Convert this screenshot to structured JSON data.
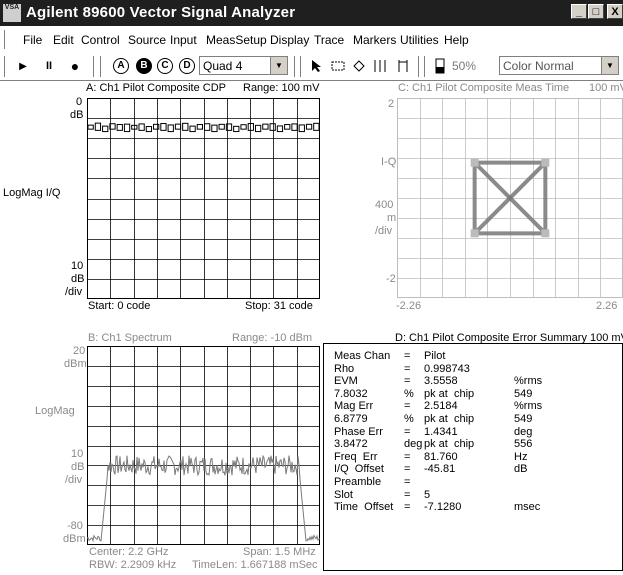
{
  "window": {
    "title": "Agilent 89600 Vector Signal Analyzer",
    "app_icon_text": "VSA",
    "controls": {
      "minimize": "_",
      "maximize": "□",
      "close": "X"
    }
  },
  "menu": [
    "File",
    "Edit",
    "Control",
    "Source",
    "Input",
    "MeasSetup",
    "Display",
    "Trace",
    "Markers",
    "Utilities",
    "Help"
  ],
  "toolbar": {
    "play": "▶",
    "pause": "II",
    "record": "●",
    "traces": [
      "A",
      "B",
      "C",
      "D"
    ],
    "layout_value": "Quad 4",
    "zoom_value": "50%",
    "color_value": "Color Normal"
  },
  "trace_a": {
    "title": "A: Ch1 Pilot Composite CDP",
    "range": "Range: 100 mV",
    "y_top": "0",
    "y_top_unit": "dB",
    "y_label": "LogMag I/Q",
    "y_scale": "10",
    "y_scale_unit": "dB",
    "y_scale_div": "/div",
    "x_start": "Start: 0  code",
    "x_stop": "Stop: 31  code",
    "bar_values_db": [
      -13.5,
      -12.5,
      -14,
      -12.8,
      -13.2,
      -13,
      -13.6,
      -12.9,
      -14.2,
      -13.1,
      -12.7,
      -13.4,
      -13,
      -12.6,
      -14,
      -13.2,
      -12.8,
      -13.5,
      -13.1,
      -12.9,
      -14.1,
      -13.3,
      -12.7,
      -13.6,
      -13,
      -12.8,
      -13.9,
      -13.2,
      -12.9,
      -13.4,
      -13.1,
      -12.6
    ],
    "ref_db": 0,
    "bottom_db": -100
  },
  "trace_b": {
    "title": "B: Ch1 Spectrum",
    "range": "Range: -10 dBm",
    "y_top": "20",
    "y_top_unit": "dBm",
    "y_label": "LogMag",
    "y_scale": "10",
    "y_scale_unit": "dB",
    "y_scale_div": "/div",
    "y_bottom": "-80",
    "y_bottom_unit": "dBm",
    "center": "Center: 2.2 GHz",
    "span": "Span: 1.5 MHz",
    "rbw": "RBW: 2.2909 kHz",
    "timelen": "TimeLen: 1.667188 mSec"
  },
  "trace_c": {
    "title": "C: Ch1 Pilot Composite Meas Time",
    "range": "100 mV",
    "y_top": "2",
    "y_label": "I-Q",
    "y_scale": "400",
    "y_scale_unit": "m",
    "y_scale_div": "/div",
    "y_bottom": "-2",
    "x_left": "-2.26",
    "x_right": "2.26",
    "constellation_points": [
      [
        -0.707,
        0.707
      ],
      [
        0.707,
        0.707
      ],
      [
        -0.707,
        -0.707
      ],
      [
        0.707,
        -0.707
      ]
    ]
  },
  "trace_d": {
    "title": "D: Ch1 Pilot Composite Error Summary",
    "range": "100 mV",
    "rows": [
      {
        "label": "Meas Chan",
        "eq": "=",
        "value": "Pilot",
        "unit": ""
      },
      {
        "label": "Rho",
        "eq": "=",
        "value": "0.998743",
        "unit": ""
      },
      {
        "label": "EVM",
        "eq": "=",
        "value": "3.5558",
        "unit": "%rms"
      },
      {
        "label": "7.8032",
        "eq": "%",
        "value": "pk at  chip",
        "unit": "549"
      },
      {
        "label": "Mag Err",
        "eq": "=",
        "value": "2.5184",
        "unit": "%rms"
      },
      {
        "label": "6.8779",
        "eq": "%",
        "value": "pk at  chip",
        "unit": "549"
      },
      {
        "label": "Phase Err",
        "eq": "=",
        "value": "1.4341",
        "unit": "deg"
      },
      {
        "label": "3.8472",
        "eq": "deg",
        "value": "pk at  chip",
        "unit": "556"
      },
      {
        "label": "Freq  Err",
        "eq": "=",
        "value": "81.760",
        "unit": "Hz"
      },
      {
        "label": "I/Q  Offset",
        "eq": "=",
        "value": "-45.81",
        "unit": "dB"
      },
      {
        "label": "Preamble",
        "eq": "=",
        "value": "",
        "unit": ""
      },
      {
        "label": "Slot",
        "eq": "=",
        "value": "5",
        "unit": ""
      },
      {
        "label": "Time  Offset",
        "eq": "=",
        "value": "-7.1280",
        "unit": "msec"
      }
    ]
  },
  "colors": {
    "titlebar": "#1f1f1f",
    "trace": "#6e6e6e",
    "grid": "#000000"
  }
}
